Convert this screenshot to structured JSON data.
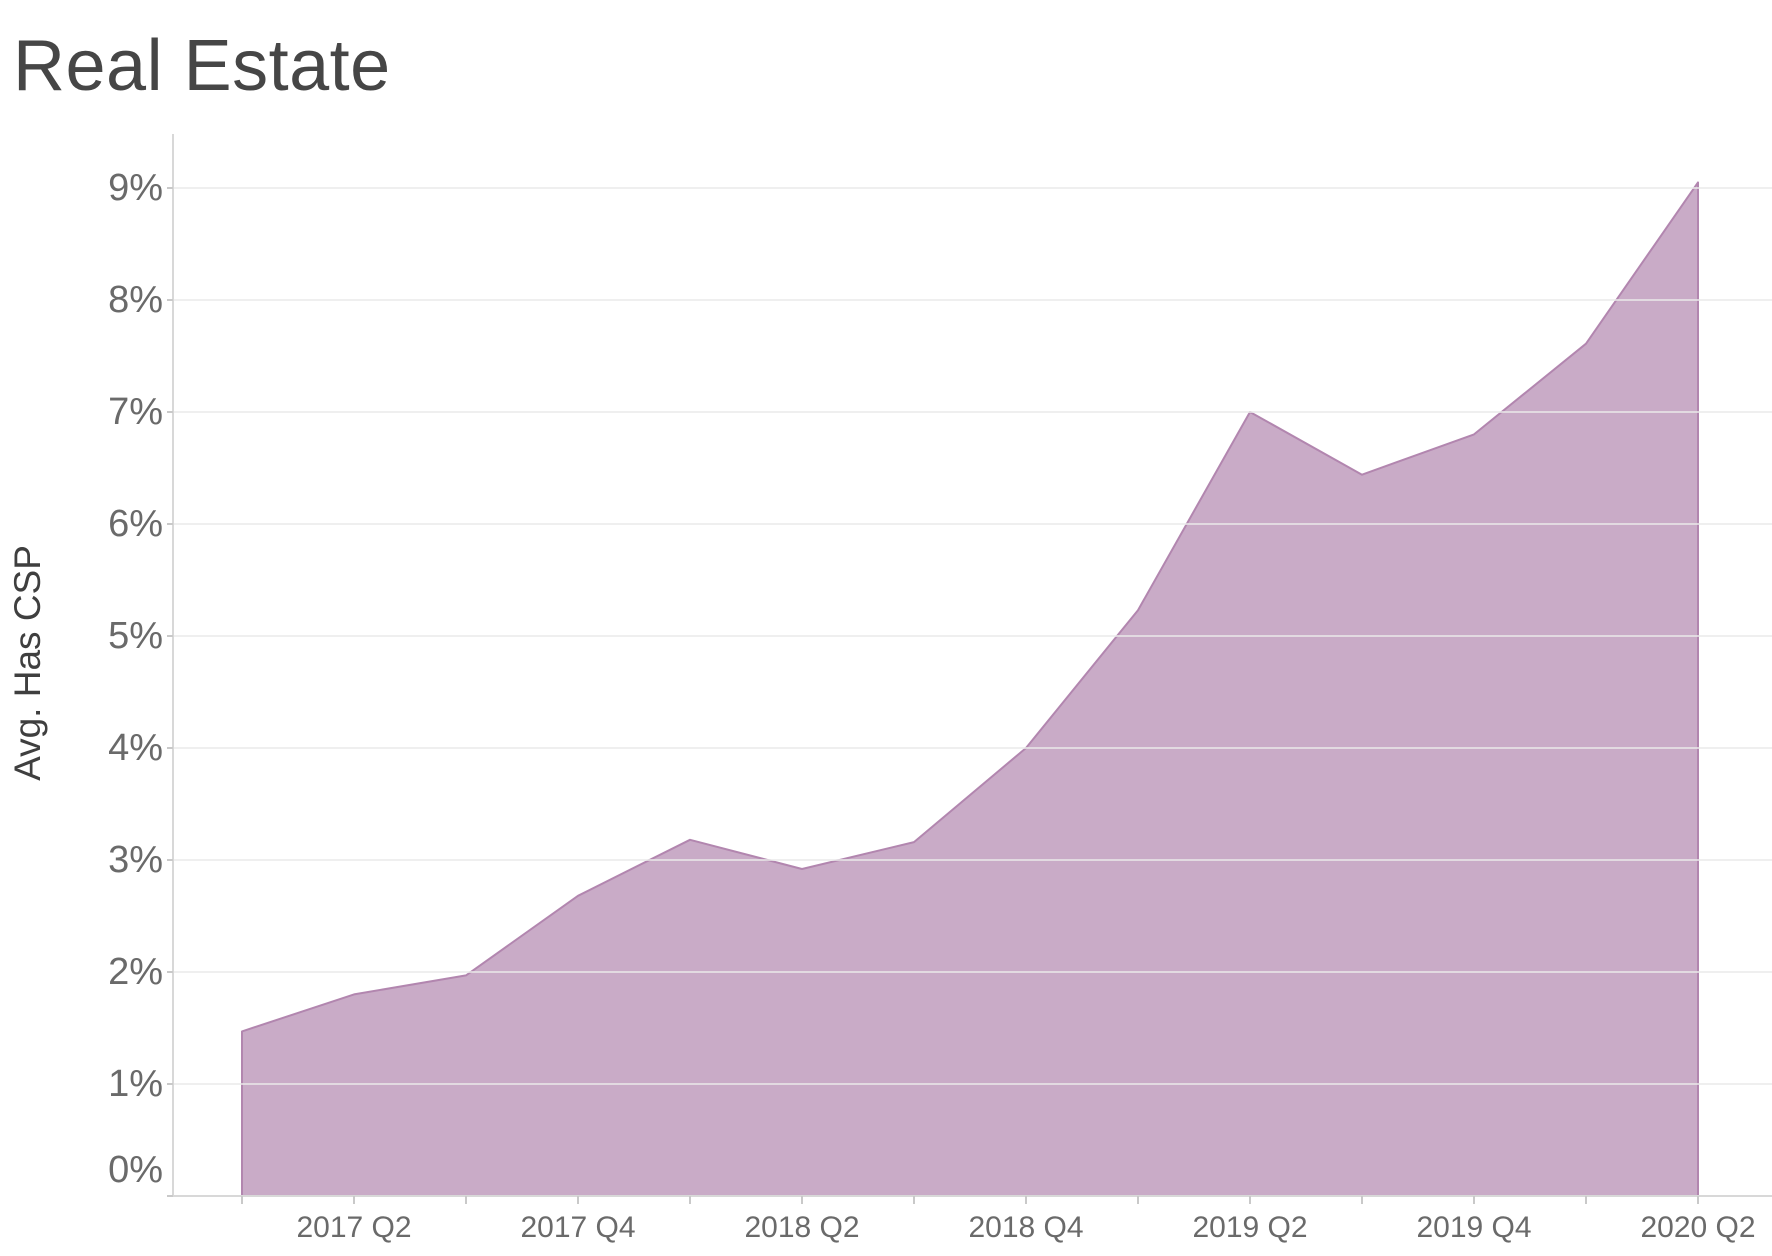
{
  "title": "Real Estate",
  "chart_data": {
    "type": "area",
    "title": "Real Estate",
    "ylabel": "Avg. Has CSP",
    "xlabel": "",
    "units": "percent",
    "x": [
      "2017 Q1",
      "2017 Q2",
      "2017 Q3",
      "2017 Q4",
      "2018 Q1",
      "2018 Q2",
      "2018 Q3",
      "2018 Q4",
      "2019 Q1",
      "2019 Q2",
      "2019 Q3",
      "2019 Q4",
      "2020 Q1",
      "2020 Q2"
    ],
    "values": [
      1.47,
      1.8,
      1.97,
      2.68,
      3.18,
      2.92,
      3.16,
      4.0,
      5.23,
      7.0,
      6.44,
      6.8,
      7.61,
      9.05
    ],
    "x_tick_labels": [
      "2017 Q2",
      "2017 Q4",
      "2018 Q2",
      "2018 Q4",
      "2019 Q2",
      "2019 Q4",
      "2020 Q2"
    ],
    "y_ticks": [
      "0%",
      "1%",
      "2%",
      "3%",
      "4%",
      "5%",
      "6%",
      "7%",
      "8%",
      "9%"
    ],
    "ylim": [
      0,
      9.5
    ],
    "grid": true,
    "legend": false,
    "colors": {
      "area_fill": "#C9ABC7",
      "area_stroke": "#B286AF",
      "gridline": "#E9E9E9",
      "axis_line": "#D8D8D8",
      "tick": "#C9C9C9",
      "tick_label": "#6A6A6A",
      "title": "#464646",
      "axis_title": "#3F3F3F",
      "background": "#FFFFFF"
    }
  }
}
